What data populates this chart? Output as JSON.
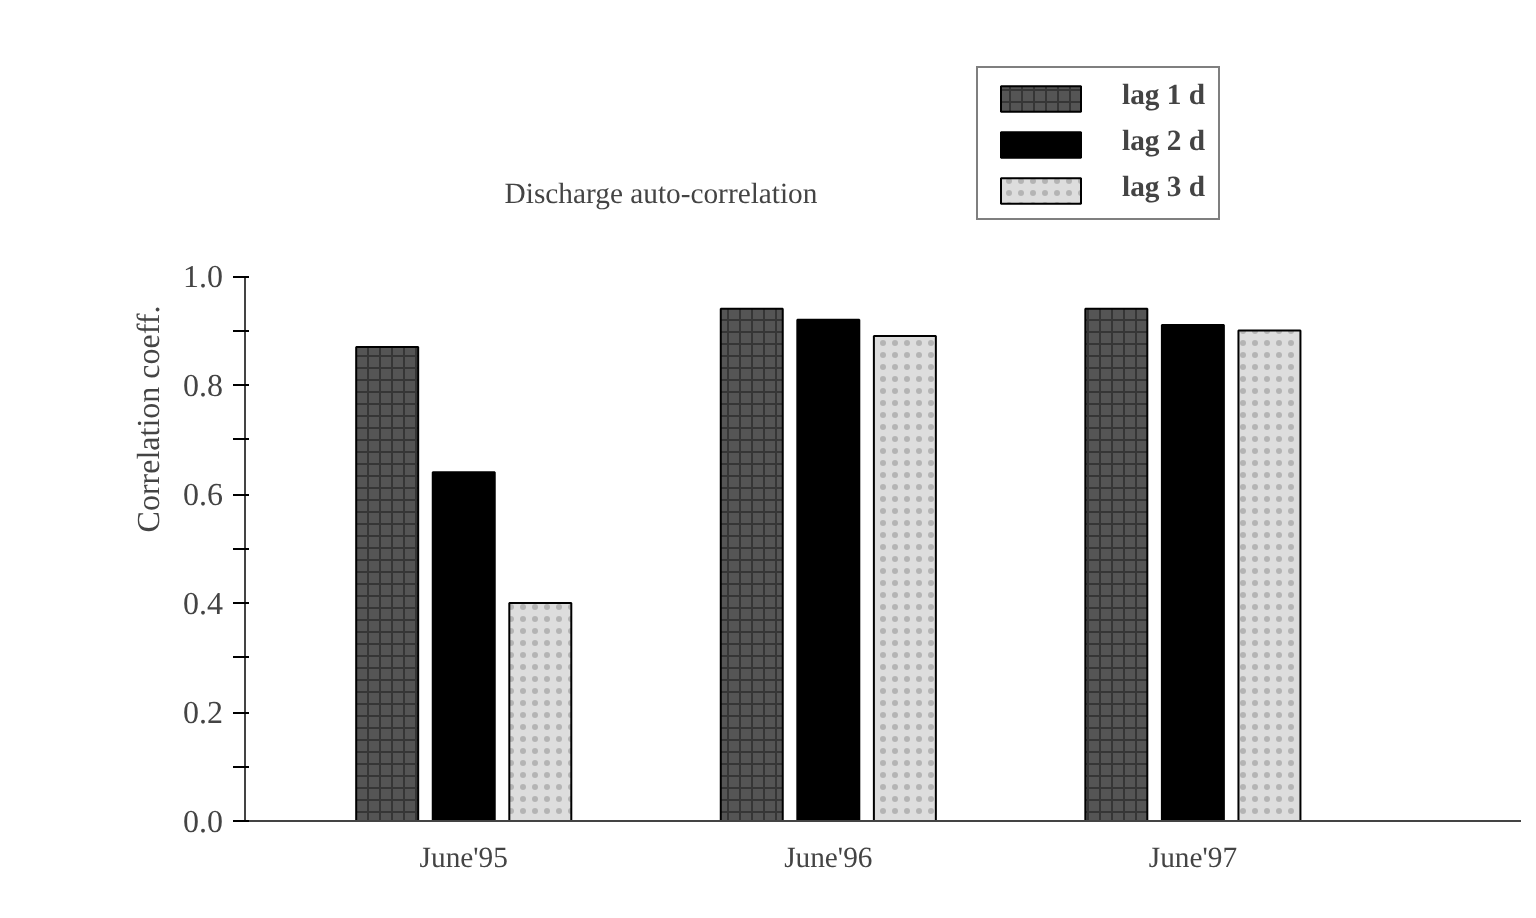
{
  "chart_data": {
    "type": "bar",
    "title": "Discharge auto-correlation",
    "ylabel": "Correlation  coeff.",
    "categories": [
      "June'95",
      "June'96",
      "June'97"
    ],
    "series": [
      {
        "name": "lag 1 d",
        "color": "#555555",
        "values": [
          0.87,
          0.94,
          0.94
        ]
      },
      {
        "name": "lag 2 d",
        "color": "#000000",
        "values": [
          0.64,
          0.92,
          0.91
        ]
      },
      {
        "name": "lag 3 d",
        "color": "#dddddd",
        "values": [
          0.4,
          0.89,
          0.9
        ]
      }
    ],
    "ylim": [
      0,
      1.0
    ],
    "yticks": [
      {
        "value": 0,
        "label": "0.0"
      },
      {
        "value": 0.1,
        "label": null
      },
      {
        "value": 0.2,
        "label": "0.2"
      },
      {
        "value": 0.3,
        "label": null
      },
      {
        "value": 0.4,
        "label": "0.4"
      },
      {
        "value": 0.5,
        "label": null
      },
      {
        "value": 0.6,
        "label": "0.6"
      },
      {
        "value": 0.7,
        "label": null
      },
      {
        "value": 0.8,
        "label": "0.8"
      },
      {
        "value": 0.9,
        "label": null
      },
      {
        "value": 1.0,
        "label": "1.0"
      }
    ],
    "grid": false,
    "legend": "top right"
  }
}
